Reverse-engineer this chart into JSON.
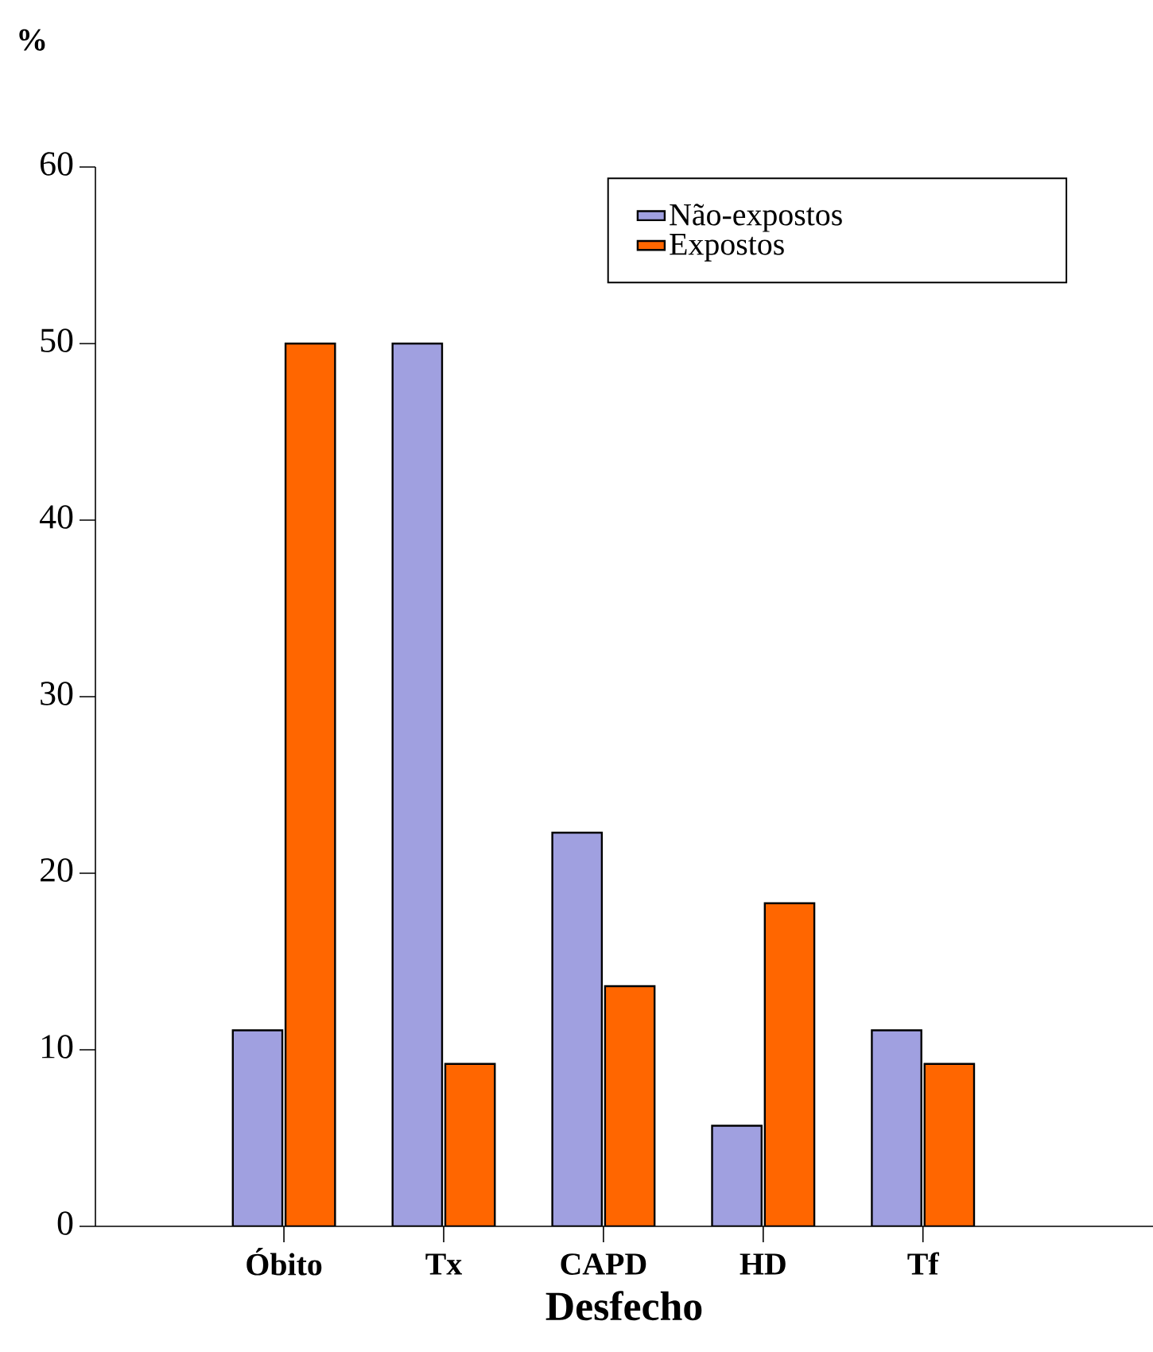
{
  "chart_data": {
    "type": "bar",
    "ylabel": "%",
    "xlabel": "Desfecho",
    "categories": [
      "Óbito",
      "Tx",
      "CAPD",
      "HD",
      "Tf"
    ],
    "series": [
      {
        "name": "Não-expostos",
        "color": "#a0a0e0",
        "values": [
          11.1,
          50,
          22.3,
          5.7,
          11.1
        ]
      },
      {
        "name": "Expostos",
        "color": "#ff6600",
        "values": [
          50,
          9.2,
          13.6,
          18.3,
          9.2
        ]
      }
    ],
    "ylim": [
      0,
      60
    ],
    "yticks": [
      0,
      10,
      20,
      30,
      40,
      50,
      60
    ],
    "grid": false,
    "legend": "top right"
  }
}
